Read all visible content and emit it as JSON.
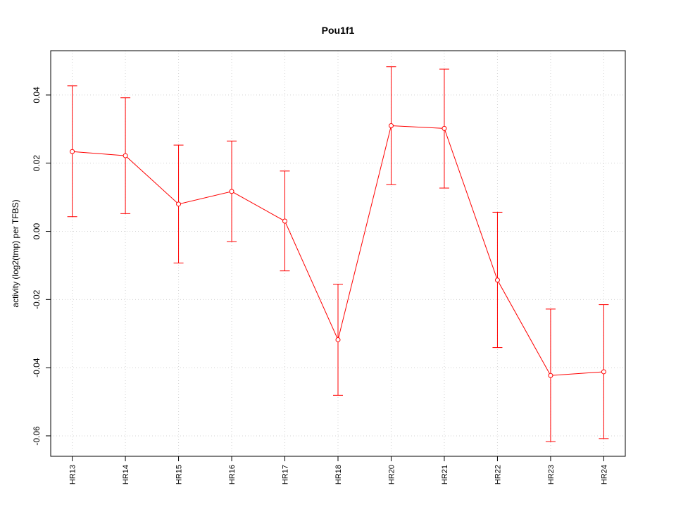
{
  "chart_data": {
    "type": "line",
    "title": "Pou1f1",
    "xlabel": "",
    "ylabel": "activity (log2(tmp) per TFBS)",
    "categories": [
      "HR13",
      "HR14",
      "HR15",
      "HR16",
      "HR17",
      "HR18",
      "HR20",
      "HR21",
      "HR22",
      "HR23",
      "HR24"
    ],
    "series": [
      {
        "values": [
          0.0234,
          0.0222,
          0.008,
          0.0117,
          0.003,
          -0.0318,
          0.031,
          0.0302,
          -0.0143,
          -0.0423,
          -0.0412
        ],
        "lower": [
          0.0043,
          0.0052,
          -0.0093,
          -0.003,
          -0.0116,
          -0.0481,
          0.0137,
          0.0127,
          -0.0341,
          -0.0617,
          -0.0608
        ],
        "upper": [
          0.0427,
          0.0392,
          0.0253,
          0.0265,
          0.0177,
          -0.0155,
          0.0483,
          0.0476,
          0.0056,
          -0.0228,
          -0.0215
        ]
      }
    ],
    "y_ticks": [
      "-0.06",
      "-0.04",
      "-0.02",
      "0.00",
      "0.02",
      "0.04"
    ],
    "ylim": [
      -0.066,
      0.053
    ],
    "grid": true,
    "color": "#ff0000"
  }
}
